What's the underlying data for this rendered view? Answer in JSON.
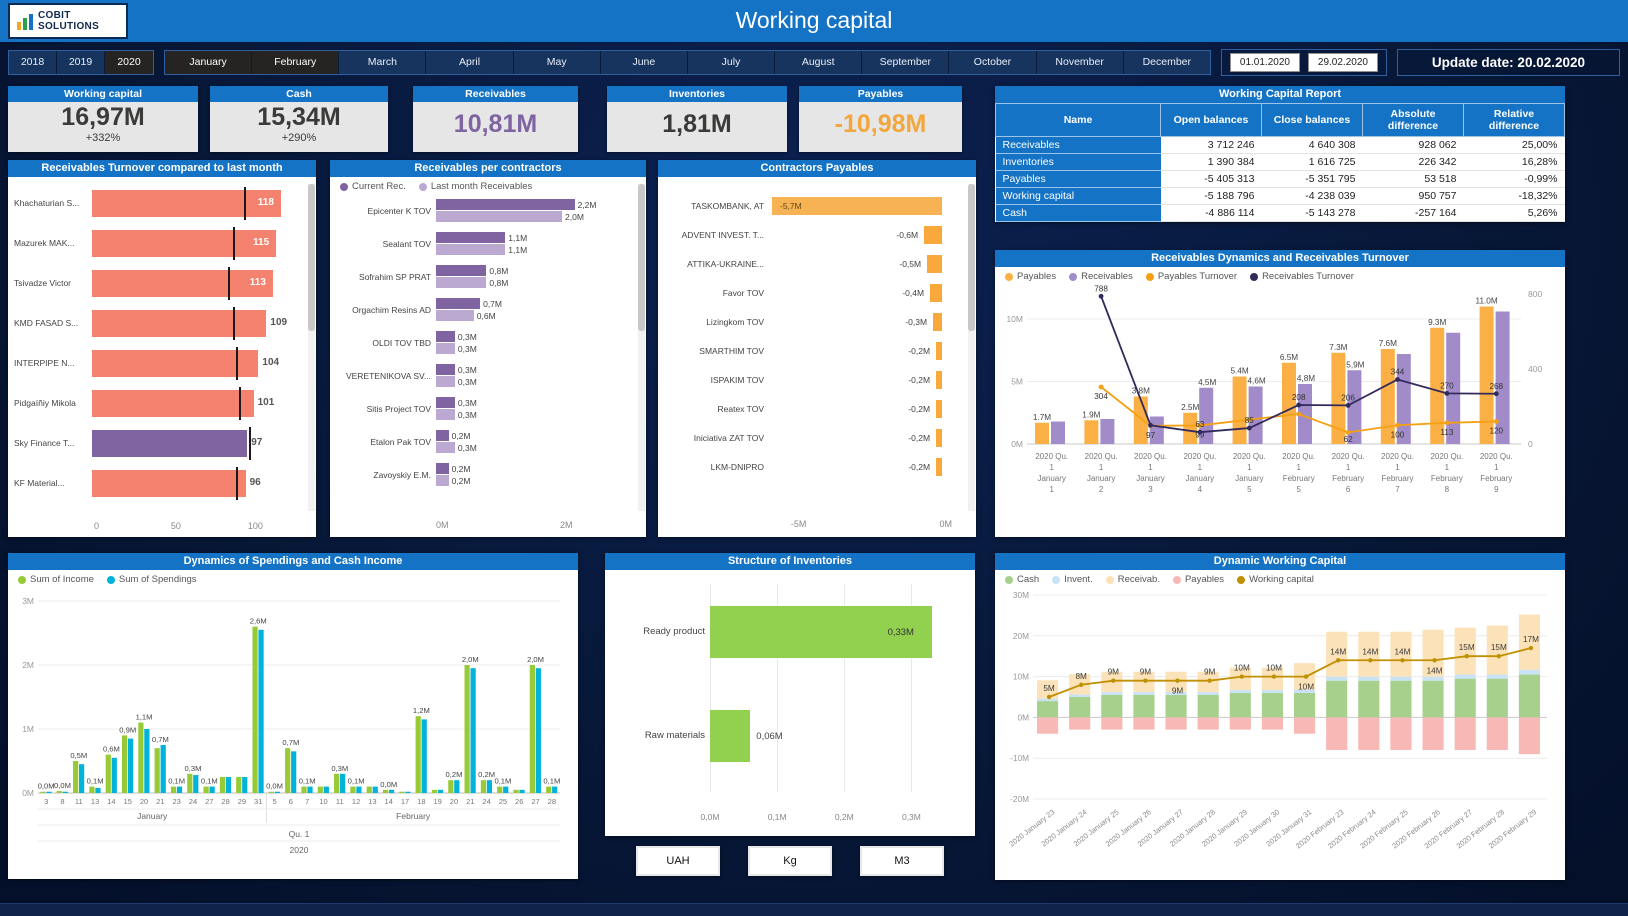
{
  "header": {
    "title": "Working capital",
    "logo_line1": "COBIT",
    "logo_line2": "SOLUTIONS"
  },
  "filters": {
    "years": [
      {
        "label": "2018",
        "active": false
      },
      {
        "label": "2019",
        "active": false
      },
      {
        "label": "2020",
        "active": true
      }
    ],
    "months": [
      {
        "label": "January",
        "active": true
      },
      {
        "label": "February",
        "active": true
      },
      {
        "label": "March",
        "active": false
      },
      {
        "label": "April",
        "active": false
      },
      {
        "label": "May",
        "active": false
      },
      {
        "label": "June",
        "active": false
      },
      {
        "label": "July",
        "active": false
      },
      {
        "label": "August",
        "active": false
      },
      {
        "label": "September",
        "active": false
      },
      {
        "label": "October",
        "active": false
      },
      {
        "label": "November",
        "active": false
      },
      {
        "label": "December",
        "active": false
      }
    ],
    "date_from": "01.01.2020",
    "date_to": "29.02.2020",
    "update_date": "Update date: 20.02.2020"
  },
  "kpis": [
    {
      "title": "Working capital",
      "value": "16,97M",
      "delta": "+332%",
      "value_color": "#3b3a39"
    },
    {
      "title": "Cash",
      "value": "15,34M",
      "delta": "+290%",
      "value_color": "#3b3a39"
    },
    {
      "title": "Receivables",
      "value": "10,81M",
      "delta": "",
      "value_color": "#8064A2"
    },
    {
      "title": "Inventories",
      "value": "1,81M",
      "delta": "",
      "value_color": "#3b3a39"
    },
    {
      "title": "Payables",
      "value": "-10,98M",
      "delta": "",
      "value_color": "#F2A63B"
    }
  ],
  "report_table": {
    "title": "Working Capital Report",
    "columns": [
      "Name",
      "Open balances",
      "Close balances",
      "Absolute difference",
      "Relative difference"
    ],
    "rows": [
      [
        "Receivables",
        "3 712 246",
        "4 640 308",
        "928 062",
        "25,00%"
      ],
      [
        "Inventories",
        "1 390 384",
        "1 616 725",
        "226 342",
        "16,28%"
      ],
      [
        "Payables",
        "-5 405 313",
        "-5 351 795",
        "53 518",
        "-0,99%"
      ],
      [
        "Working capital",
        "-5 188 796",
        "-4 238 039",
        "950 757",
        "-18,32%"
      ],
      [
        "Cash",
        "-4 886 114",
        "-5 143 278",
        "-257 164",
        "5,26%"
      ]
    ]
  },
  "buttons": {
    "units": [
      "UAH",
      "Kg",
      "M3"
    ]
  },
  "chart_data": [
    {
      "id": "turnover",
      "type": "bar",
      "title": "Receivables Turnover compared to last month",
      "categories": [
        "Khachaturian S...",
        "Mazurek MAK...",
        "Tsivadze Victor",
        "KMD FASAD S...",
        "INTERPIPE N...",
        "Pidgaíñiy Mikola",
        "Sky Finance T...",
        "KF Material..."
      ],
      "values": [
        118,
        115,
        113,
        109,
        104,
        101,
        97,
        96
      ],
      "last_month_ticks": [
        95,
        88,
        85,
        88,
        90,
        92,
        98,
        90
      ],
      "highlight_index": 6,
      "bar_color": "#F4826E",
      "highlight_color": "#8064A2",
      "xticks": [
        0,
        50,
        100
      ],
      "xlim": [
        0,
        130
      ]
    },
    {
      "id": "receivables_contractors",
      "type": "bar",
      "title": "Receivables per contractors",
      "legend": [
        "Current Rec.",
        "Last month Receivables"
      ],
      "colors": [
        "#8064A2",
        "#BCA9D2"
      ],
      "categories": [
        "Epicenter K TOV",
        "Sealant TOV",
        "Sofrahim SP PRAT",
        "Orgachim Resins AD",
        "OLDI TOV TBD",
        "VERETENIKOVA SV...",
        "Sitis Project TOV",
        "Etalon Pak TOV",
        "Zavoyskiy E.M."
      ],
      "series": [
        {
          "name": "Current Rec.",
          "values": [
            2.2,
            1.1,
            0.8,
            0.7,
            0.3,
            0.3,
            0.3,
            0.2,
            0.2
          ],
          "labels": [
            "2,2M",
            "1,1M",
            "0,8M",
            "0,7M",
            "0,3M",
            "0,3M",
            "0,3M",
            "0,2M",
            "0,2M"
          ]
        },
        {
          "name": "Last month Receivables",
          "values": [
            2.0,
            1.1,
            0.8,
            0.6,
            0.3,
            0.3,
            0.3,
            0.3,
            0.2
          ],
          "labels": [
            "2,0M",
            "1,1M",
            "0,8M",
            "0,6M",
            "0,3M",
            "0,3M",
            "0,3M",
            "0,3M",
            "0,2M"
          ]
        }
      ],
      "xticks": [
        "0M",
        "2M"
      ],
      "xlim": [
        0,
        2.6
      ]
    },
    {
      "id": "contractors_payables",
      "type": "bar",
      "title": "Contractors Payables",
      "categories": [
        "TASKOMBANK, AT",
        "ADVENT INVEST. T...",
        "ATTIKA-UKRAINE...",
        "Favor TOV",
        "Lizingkom TOV",
        "SMARTHIM TOV",
        "ISPAKIM TOV",
        "Reatex TOV",
        "Iniciativa ZAT TOV",
        "LKM-DNIPRO"
      ],
      "values": [
        -5.7,
        -0.6,
        -0.5,
        -0.4,
        -0.3,
        -0.2,
        -0.2,
        -0.2,
        -0.2,
        -0.2
      ],
      "labels": [
        "-5,7M",
        "-0,6M",
        "-0,5M",
        "-0,4M",
        "-0,3M",
        "-0,2M",
        "-0,2M",
        "-0,2M",
        "-0,2M",
        "-0,2M"
      ],
      "bar_color": "#F9A93C",
      "first_bar_color": "#F7B254",
      "xticks": [
        "-5M",
        "0M"
      ],
      "xlim": [
        -5.7,
        0
      ]
    },
    {
      "id": "receivables_dynamics",
      "type": "combo",
      "title": "Receivables Dynamics and Receivables Turnover",
      "legend": [
        {
          "label": "Payables",
          "color": "#FBB045"
        },
        {
          "label": "Receivables",
          "color": "#A18CC9"
        },
        {
          "label": "Payables Turnover",
          "color": "#F5A012"
        },
        {
          "label": "Receivables Turnover",
          "color": "#332A5C"
        }
      ],
      "categories": [
        [
          "2020 Qu.",
          "1",
          "January",
          "1"
        ],
        [
          "2020 Qu.",
          "1",
          "January",
          "2"
        ],
        [
          "2020 Qu.",
          "1",
          "January",
          "3"
        ],
        [
          "2020 Qu.",
          "1",
          "January",
          "4"
        ],
        [
          "2020 Qu.",
          "1",
          "January",
          "5"
        ],
        [
          "2020 Qu.",
          "1",
          "February",
          "5"
        ],
        [
          "2020 Qu.",
          "1",
          "February",
          "6"
        ],
        [
          "2020 Qu.",
          "1",
          "February",
          "7"
        ],
        [
          "2020 Qu.",
          "1",
          "February",
          "8"
        ],
        [
          "2020 Qu.",
          "1",
          "February",
          "9"
        ]
      ],
      "bars": {
        "payables": {
          "values": [
            1.7,
            1.9,
            3.8,
            2.5,
            5.4,
            6.5,
            7.3,
            7.6,
            9.3,
            11.0
          ],
          "labels": [
            "1.7M",
            "1.9M",
            "3.8M",
            "2.5M",
            "5.4M",
            "6.5M",
            "7.3M",
            "7.6M",
            "9.3M",
            "11.0M"
          ]
        },
        "receivables": {
          "values": [
            1.8,
            2.0,
            2.2,
            4.5,
            4.6,
            4.8,
            5.9,
            7.2,
            8.9,
            10.6
          ],
          "labels": [
            "",
            "",
            "",
            "4,5M",
            "4,6M",
            "4,8M",
            "5,9M",
            "",
            "",
            ""
          ]
        }
      },
      "lines": {
        "payables_turnover": {
          "values": [
            null,
            304,
            97,
            99,
            130,
            160,
            62,
            100,
            113,
            120
          ],
          "labels": [
            "",
            "304",
            "97",
            "99",
            "",
            "",
            "62",
            "100",
            "113",
            "120"
          ]
        },
        "receivables_turnover": {
          "values": [
            null,
            788,
            100,
            63,
            85,
            208,
            206,
            344,
            270,
            268
          ],
          "labels": [
            "",
            "788",
            "",
            "63",
            "85",
            "208",
            "206",
            "344",
            "270",
            "268"
          ]
        }
      },
      "left_axis": {
        "ticks": [
          "0M",
          "5M",
          "10M"
        ],
        "max": 12
      },
      "right_axis": {
        "ticks": [
          "0",
          "400",
          "800"
        ],
        "max": 800
      }
    },
    {
      "id": "spendings_income",
      "type": "bar",
      "title": "Dynamics of Spendings and Cash Income",
      "legend": [
        {
          "label": "Sum of Income",
          "color": "#97CA35"
        },
        {
          "label": "Sum of Spendings",
          "color": "#00B3DA"
        }
      ],
      "days": [
        "3",
        "8",
        "11",
        "13",
        "14",
        "15",
        "20",
        "21",
        "23",
        "24",
        "27",
        "28",
        "29",
        "31",
        "5",
        "6",
        "7",
        "10",
        "11",
        "12",
        "13",
        "14",
        "17",
        "18",
        "19",
        "20",
        "21",
        "24",
        "25",
        "26",
        "27",
        "28"
      ],
      "january_count": 14,
      "income": [
        0.02,
        0.03,
        0.5,
        0.1,
        0.6,
        0.9,
        1.1,
        0.7,
        0.1,
        0.3,
        0.1,
        0.25,
        0.25,
        2.6,
        0.02,
        0.7,
        0.1,
        0.1,
        0.3,
        0.1,
        0.1,
        0.05,
        0.02,
        1.2,
        0.05,
        0.2,
        2.0,
        0.2,
        0.1,
        0.05,
        2.0,
        0.1
      ],
      "spendings": [
        0.02,
        0.02,
        0.45,
        0.08,
        0.55,
        0.85,
        1.0,
        0.75,
        0.1,
        0.28,
        0.1,
        0.25,
        0.25,
        2.55,
        0.02,
        0.65,
        0.1,
        0.1,
        0.3,
        0.1,
        0.1,
        0.05,
        0.02,
        1.15,
        0.05,
        0.2,
        1.95,
        0.2,
        0.1,
        0.05,
        1.95,
        0.1
      ],
      "bar_labels": [
        "0,0M",
        "0,0M",
        "0,5M",
        "0,1M",
        "0,6M",
        "0,9M",
        "1,1M",
        "0,7M",
        "0,1M",
        "0,3M",
        "0,1M",
        "",
        "",
        "2,6M",
        "0,0M",
        "0,7M",
        "0,1M",
        "",
        "0,3M",
        "0,1M",
        "",
        "0,0M",
        "",
        "1,2M",
        "",
        "0,2M",
        "2,0M",
        "0,2M",
        "0,1M",
        "",
        "2,0M",
        "0,1M"
      ],
      "month_labels": [
        "January",
        "February"
      ],
      "quarter_label": "Qu. 1",
      "year_label": "2020",
      "yticks": [
        "0M",
        "1M",
        "2M",
        "3M"
      ],
      "ymax": 3
    },
    {
      "id": "inventories",
      "type": "bar",
      "title": "Structure of Inventories",
      "categories": [
        "Ready product",
        "Raw materials"
      ],
      "values": [
        0.33,
        0.06
      ],
      "labels": [
        "0,33M",
        "0,06M"
      ],
      "bar_color": "#92D050",
      "xticks": [
        "0,0M",
        "0,1M",
        "0,2M",
        "0,3M"
      ],
      "xlim": [
        0,
        0.35
      ]
    },
    {
      "id": "dynamic_working_capital",
      "type": "combo",
      "title": "Dynamic Working Capital",
      "legend": [
        {
          "label": "Cash",
          "color": "#A8D08D"
        },
        {
          "label": "Invent.",
          "color": "#C9E3F5"
        },
        {
          "label": "Receivab.",
          "color": "#FCE2B8"
        },
        {
          "label": "Payables",
          "color": "#F8B8B5"
        },
        {
          "label": "Working capital",
          "color": "#C09000"
        }
      ],
      "categories": [
        "2020 January 23",
        "2020 January 24",
        "2020 January 25",
        "2020 January 26",
        "2020 January 27",
        "2020 January 28",
        "2020 January 29",
        "2020 January 30",
        "2020 January 31",
        "2020 February 23",
        "2020 February 24",
        "2020 February 25",
        "2020 February 26",
        "2020 February 27",
        "2020 February 28",
        "2020 February 29"
      ],
      "stacks": {
        "cash": [
          4,
          5,
          5.5,
          5.5,
          5.5,
          5.5,
          6,
          6,
          6,
          9,
          9,
          9,
          9,
          9.5,
          9.5,
          10.5
        ],
        "inventories": [
          0.6,
          0.6,
          0.7,
          0.7,
          0.7,
          0.7,
          0.7,
          0.7,
          0.8,
          1,
          1,
          1,
          1,
          1,
          1,
          1.2
        ],
        "receivables": [
          4.5,
          5,
          5,
          5,
          5,
          5,
          5.5,
          5.5,
          6.5,
          11,
          11,
          11,
          11.5,
          11.5,
          12,
          13.5
        ],
        "payables": [
          -4,
          -3,
          -3,
          -3,
          -3,
          -3,
          -3,
          -3,
          -4,
          -8,
          -8,
          -8,
          -8,
          -8,
          -8,
          -9
        ]
      },
      "line": {
        "values": [
          5,
          8,
          9,
          9,
          9,
          9,
          10,
          10,
          10,
          14,
          14,
          14,
          14,
          15,
          15,
          17
        ],
        "labels": [
          "5M",
          "8M",
          "9M",
          "9M",
          "9M",
          "9M",
          "10M",
          "10M",
          "10M",
          "14M",
          "14M",
          "14M",
          "14M",
          "15M",
          "15M",
          "17M"
        ],
        "label_below": [
          false,
          false,
          false,
          false,
          true,
          false,
          false,
          false,
          true,
          false,
          false,
          false,
          true,
          false,
          false,
          false
        ]
      },
      "yticks": [
        {
          "v": 30,
          "label": "30M"
        },
        {
          "v": 20,
          "label": "20M"
        },
        {
          "v": 10,
          "label": "10M"
        },
        {
          "v": 0,
          "label": "0M"
        },
        {
          "v": -10,
          "label": "-10M"
        },
        {
          "v": -20,
          "label": "-20M"
        }
      ],
      "ylim": [
        -20,
        30
      ]
    }
  ]
}
